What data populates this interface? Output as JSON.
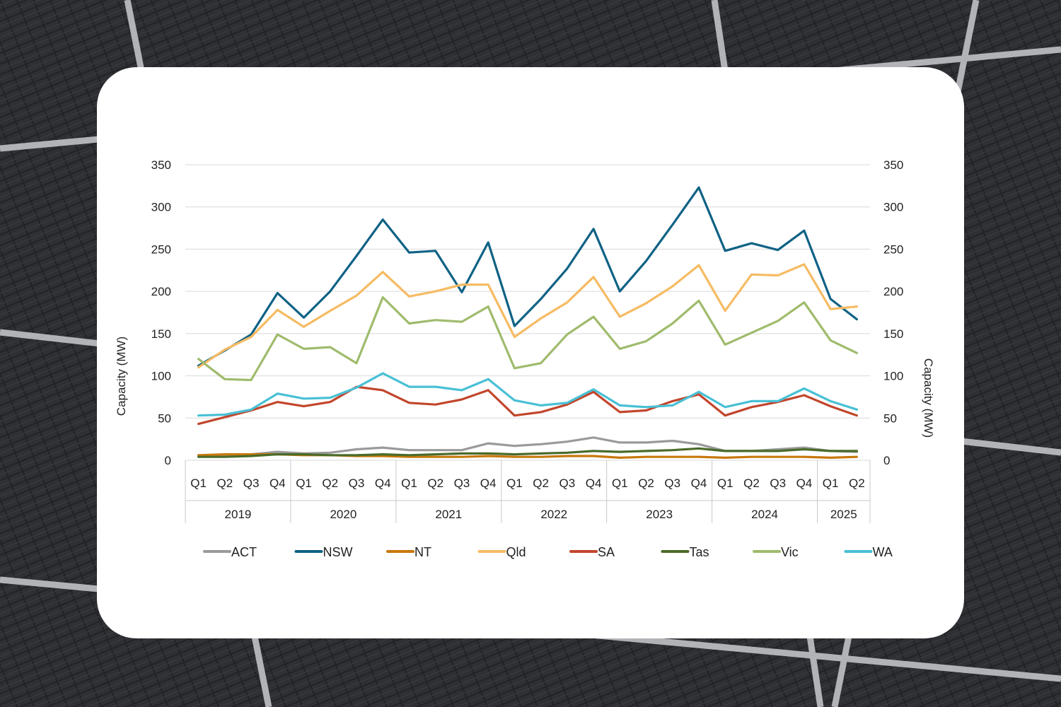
{
  "background": {
    "description_icon": "solar-panel-photo",
    "color": "#1e1f21"
  },
  "chart_data": {
    "type": "line",
    "title": "",
    "ylabel": "Capacity (MW)",
    "y2label": "Capacity (MW)",
    "ylim": [
      0,
      350
    ],
    "yticks": [
      0,
      50,
      100,
      150,
      200,
      250,
      300,
      350
    ],
    "grid": true,
    "legend_position": "bottom",
    "quarters": [
      "Q1",
      "Q2",
      "Q3",
      "Q4",
      "Q1",
      "Q2",
      "Q3",
      "Q4",
      "Q1",
      "Q2",
      "Q3",
      "Q4",
      "Q1",
      "Q2",
      "Q3",
      "Q4",
      "Q1",
      "Q2",
      "Q3",
      "Q4",
      "Q1",
      "Q2",
      "Q3",
      "Q4",
      "Q1",
      "Q2"
    ],
    "years": [
      {
        "label": "2019",
        "count": 4
      },
      {
        "label": "2020",
        "count": 4
      },
      {
        "label": "2021",
        "count": 4
      },
      {
        "label": "2022",
        "count": 4
      },
      {
        "label": "2023",
        "count": 4
      },
      {
        "label": "2024",
        "count": 4
      },
      {
        "label": "2025",
        "count": 2
      }
    ],
    "series": [
      {
        "name": "ACT",
        "color": "#9a9a9a",
        "values": [
          5,
          6,
          7,
          10,
          8,
          9,
          13,
          15,
          12,
          12,
          12,
          20,
          17,
          19,
          22,
          27,
          21,
          21,
          23,
          19,
          11,
          11,
          13,
          15,
          11,
          10
        ]
      },
      {
        "name": "NSW",
        "color": "#0f6285",
        "values": [
          112,
          130,
          149,
          198,
          169,
          200,
          242,
          285,
          246,
          248,
          199,
          258,
          159,
          191,
          227,
          274,
          200,
          236,
          279,
          323,
          248,
          257,
          249,
          272,
          191,
          167
        ]
      },
      {
        "name": "NT",
        "color": "#c8780c",
        "values": [
          6,
          7,
          7,
          7,
          6,
          6,
          5,
          5,
          4,
          4,
          4,
          5,
          4,
          4,
          5,
          5,
          3,
          4,
          4,
          4,
          3,
          4,
          4,
          4,
          3,
          4
        ]
      },
      {
        "name": "Qld",
        "color": "#f6bb63",
        "values": [
          110,
          131,
          146,
          178,
          158,
          177,
          195,
          223,
          194,
          200,
          208,
          208,
          146,
          168,
          187,
          217,
          170,
          186,
          206,
          231,
          177,
          220,
          219,
          232,
          179,
          182
        ]
      },
      {
        "name": "SA",
        "color": "#c2462c",
        "values": [
          43,
          51,
          59,
          69,
          64,
          69,
          87,
          83,
          68,
          66,
          72,
          83,
          53,
          57,
          66,
          81,
          57,
          59,
          70,
          78,
          53,
          63,
          69,
          77,
          64,
          53
        ]
      },
      {
        "name": "Tas",
        "color": "#4a6b2a",
        "values": [
          4,
          4,
          5,
          7,
          7,
          6,
          6,
          7,
          6,
          7,
          8,
          8,
          7,
          8,
          9,
          11,
          10,
          11,
          12,
          14,
          11,
          11,
          11,
          13,
          11,
          11
        ]
      },
      {
        "name": "Vic",
        "color": "#9fbb6c",
        "values": [
          120,
          96,
          95,
          149,
          132,
          134,
          115,
          193,
          162,
          166,
          164,
          182,
          109,
          115,
          149,
          170,
          132,
          141,
          162,
          189,
          137,
          151,
          165,
          187,
          142,
          127
        ]
      },
      {
        "name": "WA",
        "color": "#48c0d5",
        "values": [
          53,
          54,
          60,
          79,
          73,
          74,
          86,
          103,
          87,
          87,
          83,
          96,
          71,
          65,
          68,
          84,
          65,
          63,
          65,
          81,
          63,
          70,
          70,
          85,
          70,
          60
        ]
      }
    ]
  }
}
